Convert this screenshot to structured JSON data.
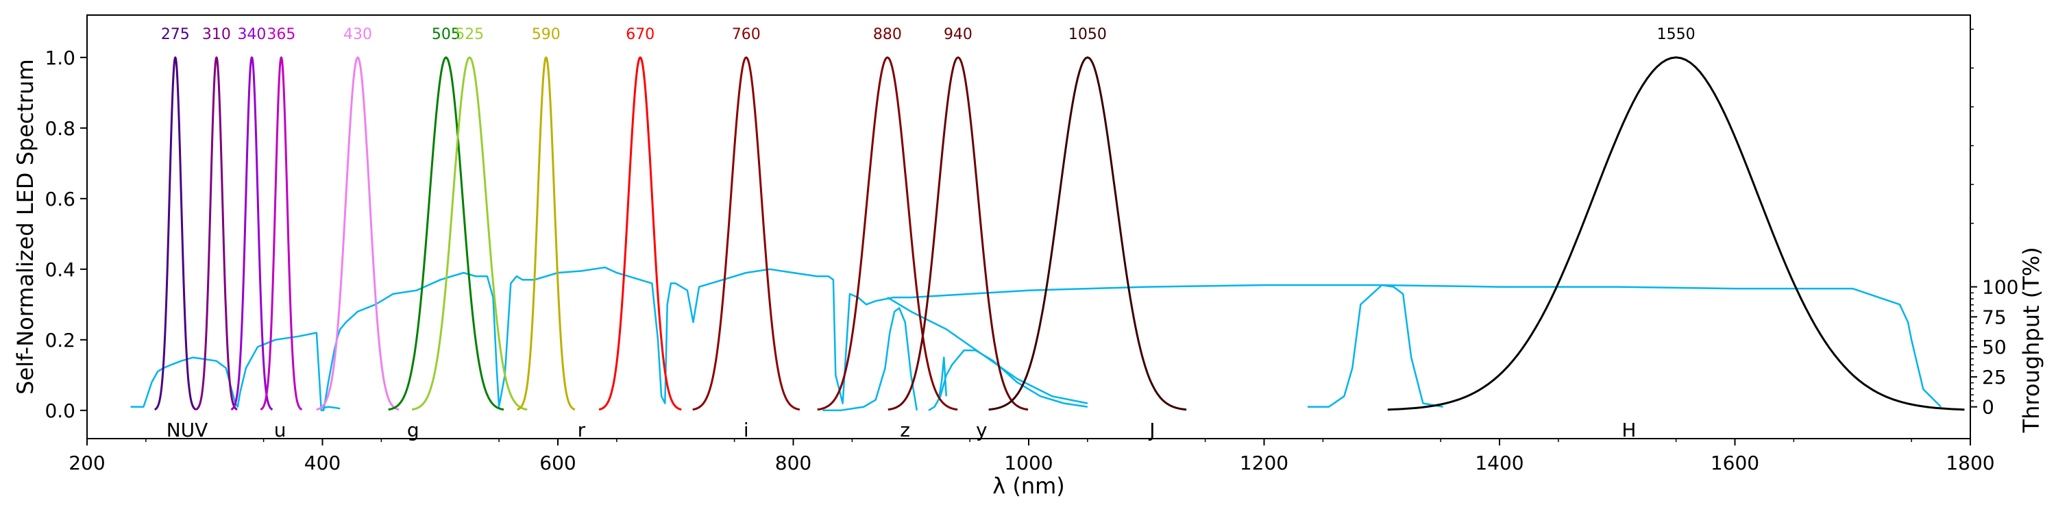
{
  "chart_data": {
    "type": "line",
    "xlabel": "λ (nm)",
    "ylabel_left": "Self-Normalized LED Spectrum",
    "ylabel_right": "Throughput (T%)",
    "xlim": [
      200,
      1800
    ],
    "ylim": [
      -0.08,
      1.12
    ],
    "x_ticks": [
      200,
      400,
      600,
      800,
      1000,
      1200,
      1400,
      1600,
      1800
    ],
    "y_ticks": [
      0.0,
      0.2,
      0.4,
      0.6,
      0.8,
      1.0
    ],
    "y_right_ticks": [
      {
        "label": "0",
        "left_value": 0.01
      },
      {
        "label": "25",
        "left_value": 0.095
      },
      {
        "label": "50",
        "left_value": 0.18
      },
      {
        "label": "75",
        "left_value": 0.265
      },
      {
        "label": "100",
        "left_value": 0.35
      }
    ],
    "y_right_minor_ticks": [
      0.53,
      0.64,
      0.75,
      0.86,
      0.97,
      1.08
    ],
    "led_peaks": [
      {
        "center": 275,
        "sigma": 5,
        "color": "#4b0082",
        "label": "275"
      },
      {
        "center": 310,
        "sigma": 5,
        "color": "#800080",
        "label": "310"
      },
      {
        "center": 340,
        "sigma": 5,
        "color": "#9400d3",
        "label": "340"
      },
      {
        "center": 365,
        "sigma": 5,
        "color": "#c000c0",
        "label": "365"
      },
      {
        "center": 430,
        "sigma": 10,
        "color": "#ee82ee",
        "label": "430"
      },
      {
        "center": 505,
        "sigma": 14,
        "color": "#008000",
        "label": "505"
      },
      {
        "center": 525,
        "sigma": 14,
        "color": "#9acd32",
        "label": "525"
      },
      {
        "center": 590,
        "sigma": 7,
        "color": "#bdb000",
        "label": "590"
      },
      {
        "center": 670,
        "sigma": 10,
        "color": "#ff0000",
        "label": "670"
      },
      {
        "center": 760,
        "sigma": 13,
        "color": "#8b0000",
        "label": "760"
      },
      {
        "center": 880,
        "sigma": 17,
        "color": "#800000",
        "label": "880"
      },
      {
        "center": 940,
        "sigma": 17,
        "color": "#6b0000",
        "label": "940"
      },
      {
        "center": 1050,
        "sigma": 24,
        "color": "#3b0000",
        "label": "1050"
      },
      {
        "center": 1550,
        "sigma": 70,
        "color": "#000000",
        "label": "1550"
      }
    ],
    "throughput_curve": {
      "color": "#00b4ee",
      "x": [
        237,
        248,
        250,
        255,
        260,
        265,
        272,
        280,
        290,
        300,
        310,
        318,
        322,
        326,
        328,
        330,
        335,
        345,
        360,
        380,
        395,
        399,
        401,
        405,
        410,
        413,
        415,
        420,
        430,
        445,
        460,
        480,
        500,
        510,
        520,
        530,
        540,
        545,
        548,
        550,
        555,
        560,
        565,
        570,
        580,
        600,
        620,
        640,
        650,
        660,
        670,
        680,
        685,
        688,
        691,
        693,
        696,
        700,
        705,
        710,
        715,
        720,
        740,
        760,
        780,
        800,
        820,
        830,
        834,
        836,
        842,
        848,
        855,
        862,
        870,
        885,
        900,
        950,
        1000,
        1100,
        1200,
        1300,
        1400,
        1500,
        1600,
        1700,
        1740,
        1747,
        1750,
        1760,
        1775
      ],
      "y": [
        0.01,
        0.01,
        0.03,
        0.08,
        0.11,
        0.12,
        0.13,
        0.14,
        0.15,
        0.145,
        0.14,
        0.12,
        0.07,
        0.02,
        0.01,
        0.05,
        0.12,
        0.18,
        0.2,
        0.21,
        0.22,
        0.0,
        0.0,
        0.08,
        0.17,
        0.21,
        0.23,
        0.25,
        0.28,
        0.3,
        0.33,
        0.34,
        0.37,
        0.38,
        0.39,
        0.38,
        0.38,
        0.32,
        0.12,
        0.01,
        0.1,
        0.36,
        0.38,
        0.37,
        0.37,
        0.39,
        0.395,
        0.405,
        0.39,
        0.38,
        0.37,
        0.36,
        0.2,
        0.04,
        0.02,
        0.3,
        0.36,
        0.36,
        0.35,
        0.34,
        0.25,
        0.35,
        0.37,
        0.39,
        0.4,
        0.39,
        0.38,
        0.38,
        0.37,
        0.1,
        0.02,
        0.33,
        0.32,
        0.3,
        0.31,
        0.32,
        0.32,
        0.33,
        0.34,
        0.35,
        0.355,
        0.355,
        0.35,
        0.35,
        0.345,
        0.345,
        0.3,
        0.25,
        0.2,
        0.06,
        0.01
      ]
    },
    "filter_curves": [
      {
        "name": "nuv-filter",
        "x": [
          400,
          402,
          405,
          410,
          415
        ],
        "y": [
          0.005,
          0.008,
          0.01,
          0.008,
          0.005
        ]
      },
      {
        "name": "z-filter",
        "x": [
          825,
          840,
          860,
          870,
          878,
          882,
          886,
          890,
          895,
          900,
          905
        ],
        "y": [
          0.0,
          0.0,
          0.01,
          0.03,
          0.12,
          0.22,
          0.28,
          0.29,
          0.25,
          0.1,
          0.0
        ]
      },
      {
        "name": "y-filter",
        "x": [
          915,
          920,
          925,
          930,
          935,
          945,
          955,
          970,
          990,
          1010,
          1030,
          1050
        ],
        "y": [
          0.0,
          0.01,
          0.04,
          0.1,
          0.13,
          0.17,
          0.17,
          0.14,
          0.08,
          0.04,
          0.02,
          0.01
        ]
      },
      {
        "name": "y-dip-spur",
        "x": [
          924,
          926,
          928,
          930
        ],
        "y": [
          0.04,
          0.08,
          0.15,
          0.04
        ]
      },
      {
        "name": "nir-slope",
        "x": [
          880,
          900,
          930,
          960,
          990,
          1020,
          1050
        ],
        "y": [
          0.32,
          0.28,
          0.23,
          0.16,
          0.09,
          0.04,
          0.02
        ]
      },
      {
        "name": "H-filter-short",
        "x": [
          1237,
          1255,
          1268,
          1275,
          1282,
          1300,
          1310,
          1318,
          1325,
          1335,
          1352
        ],
        "y": [
          0.01,
          0.01,
          0.04,
          0.12,
          0.3,
          0.355,
          0.35,
          0.33,
          0.15,
          0.02,
          0.01
        ]
      }
    ],
    "band_labels": [
      {
        "label": "NUV",
        "x": 285
      },
      {
        "label": "u",
        "x": 364
      },
      {
        "label": "g",
        "x": 477
      },
      {
        "label": "r",
        "x": 620
      },
      {
        "label": "i",
        "x": 760
      },
      {
        "label": "z",
        "x": 895
      },
      {
        "label": "y",
        "x": 960
      },
      {
        "label": "J",
        "x": 1105
      },
      {
        "label": "H",
        "x": 1510
      }
    ]
  }
}
